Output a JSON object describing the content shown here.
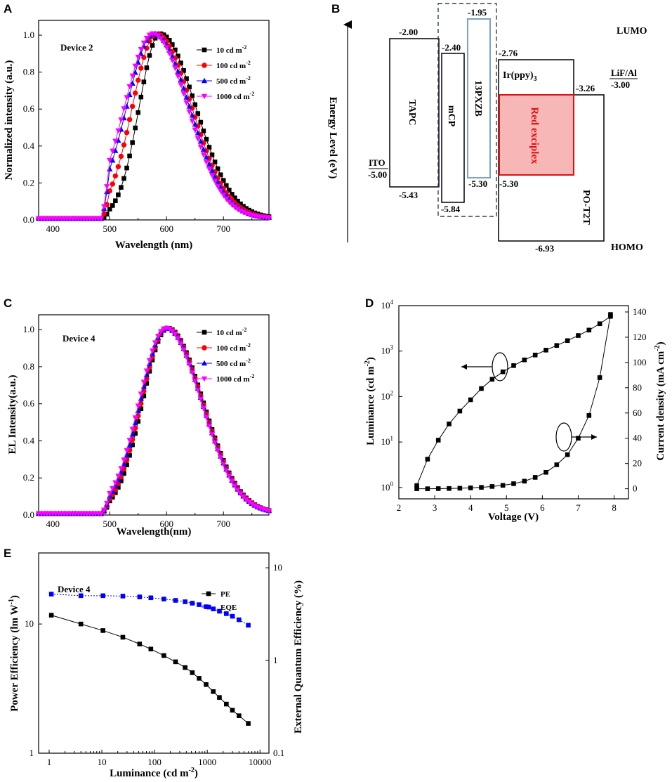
{
  "panels": {
    "A": {
      "letter": "A"
    },
    "B": {
      "letter": "B"
    },
    "C": {
      "letter": "C"
    },
    "D": {
      "letter": "D"
    },
    "E": {
      "letter": "E"
    }
  },
  "chart_data": [
    {
      "id": "A",
      "type": "line",
      "title": "Device 2",
      "xlabel": "Wavelength (nm)",
      "ylabel": "Normalized  intensity (a.u.)",
      "xlim": [
        375,
        780
      ],
      "ylim": [
        0,
        1.08
      ],
      "xticks": [
        "400",
        "500",
        "600",
        "700"
      ],
      "yticks": [
        "0.0",
        "0.2",
        "0.4",
        "0.6",
        "0.8",
        "1.0"
      ],
      "legend": [
        {
          "label": "10 cd m",
          "sup": "-2",
          "color": "#000000",
          "marker": "square",
          "peak": 588,
          "sl": 36,
          "sr": 63
        },
        {
          "label": "100 cd m",
          "sup": "-2",
          "color": "#ff0000",
          "marker": "circle",
          "peak": 582,
          "sl": 42,
          "sr": 62
        },
        {
          "label": "500 cd m",
          "sup": "-2",
          "color": "#0000ff",
          "marker": "triangle-up",
          "peak": 578,
          "sl": 48,
          "sr": 62
        },
        {
          "label": "1000 cd m",
          "sup": "-2",
          "color": "#ff00ff",
          "marker": "triangle-down",
          "peak": 576,
          "sl": 50,
          "sr": 61
        }
      ],
      "note": "Peak-normalized EL spectra; onset near 490 nm, peaks 576-590 nm"
    },
    {
      "id": "B",
      "type": "diagram",
      "ylabel": "Energy Level (eV)",
      "lumo_label": "LUMO",
      "homo_label": "HOMO",
      "layers": [
        {
          "name": "ITO",
          "value": "-5.00"
        },
        {
          "name": "TAPC",
          "lumo": "-2.00",
          "homo": "-5.43"
        },
        {
          "name": "mCP",
          "lumo": "-2.40",
          "homo": "-5.84"
        },
        {
          "name": "13PXZB",
          "lumo": "-1.95",
          "homo": "-5.30"
        },
        {
          "name": "Ir(ppy)",
          "sub": "3",
          "lumo": "-2.76"
        },
        {
          "name": "Red exciplex",
          "lumo": "-3.26",
          "homo": "-5.30"
        },
        {
          "name": "PO-T2T",
          "homo": "-6.93"
        },
        {
          "name": "LiF/Al",
          "value": "-3.00"
        }
      ]
    },
    {
      "id": "C",
      "type": "line",
      "title": "Device 4",
      "xlabel": "Wavelength(nm)",
      "ylabel": "EL Intensity(a.u.)",
      "xlim": [
        375,
        780
      ],
      "ylim": [
        0,
        1.08
      ],
      "xticks": [
        "400",
        "500",
        "600",
        "700"
      ],
      "yticks": [
        "0.0",
        "0.2",
        "0.4",
        "0.6",
        "0.8",
        "1.0"
      ],
      "legend": [
        {
          "label": "10 cd m",
          "sup": "-2",
          "color": "#000000",
          "marker": "square",
          "peak": 602,
          "sl": 44,
          "sr": 62
        },
        {
          "label": "100 cd m",
          "sup": "-2",
          "color": "#ff0000",
          "marker": "circle",
          "peak": 601,
          "sl": 45,
          "sr": 62
        },
        {
          "label": "500 cd m",
          "sup": "-2",
          "color": "#0000ff",
          "marker": "triangle-up",
          "peak": 600,
          "sl": 46,
          "sr": 62
        },
        {
          "label": "1000 cd m",
          "sup": "-2",
          "color": "#ff00ff",
          "marker": "triangle-down",
          "peak": 599,
          "sl": 47,
          "sr": 62
        }
      ],
      "note": "Peak-normalized EL spectra, peak near 600 nm"
    },
    {
      "id": "D",
      "type": "line",
      "xlabel": "Voltage (V)",
      "ylabel": "Luminance (cd m",
      "ylabel_sup": "-2",
      "ylabel_end": ")",
      "y2label": "Current density (mA cm",
      "y2label_sup": "-2",
      "y2label_end": ")",
      "xlim": [
        2,
        8.4
      ],
      "xticks": [
        "2",
        "3",
        "4",
        "5",
        "6",
        "7",
        "8"
      ],
      "ylim_log": [
        -0.25,
        4
      ],
      "yticks_log": [
        {
          "b": "10",
          "e": "0"
        },
        {
          "b": "10",
          "e": "1"
        },
        {
          "b": "10",
          "e": "2"
        },
        {
          "b": "10",
          "e": "3"
        },
        {
          "b": "10",
          "e": "4"
        }
      ],
      "y2lim": [
        -8,
        145
      ],
      "y2ticks": [
        "0",
        "20",
        "40",
        "60",
        "80",
        "100",
        "120",
        "140"
      ],
      "series": [
        {
          "name": "Luminance",
          "axis": "left-log",
          "x": [
            2.5,
            2.8,
            3.1,
            3.4,
            3.7,
            4.0,
            4.3,
            4.6,
            4.9,
            5.2,
            5.5,
            5.8,
            6.1,
            6.4,
            6.7,
            7.0,
            7.3,
            7.6,
            7.9
          ],
          "y": [
            1.1,
            4.2,
            11,
            25,
            48,
            85,
            150,
            240,
            350,
            480,
            640,
            820,
            1050,
            1330,
            1700,
            2200,
            2900,
            4000,
            5800
          ]
        },
        {
          "name": "Current density",
          "axis": "right",
          "x": [
            2.5,
            2.8,
            3.1,
            3.4,
            3.7,
            4.0,
            4.3,
            4.6,
            4.9,
            5.2,
            5.5,
            5.8,
            6.1,
            6.4,
            6.7,
            7.0,
            7.3,
            7.6,
            7.9
          ],
          "y": [
            0,
            0,
            0.1,
            0.2,
            0.4,
            0.7,
            1.1,
            1.8,
            2.7,
            4.0,
            6.0,
            9,
            13,
            19,
            27,
            40,
            58,
            88,
            138
          ]
        }
      ]
    },
    {
      "id": "E",
      "type": "line",
      "title": "Device 4",
      "xlabel": "Luminance (cd m",
      "xlabel_sup": "-2",
      "xlabel_end": ")",
      "ylabel": "Power Efficiency (lm W",
      "ylabel_sup": "-1",
      "ylabel_end": ")",
      "y2label": "External Quantum Efficiency (%)",
      "xlim_log": [
        -0.2,
        4.17
      ],
      "xticks": [
        "1",
        "10",
        "100",
        "1000",
        "10000"
      ],
      "ylim_log": [
        0,
        1.55
      ],
      "yticks": [
        "1",
        "10"
      ],
      "y2lim_log": [
        -1,
        1.16
      ],
      "y2ticks": [
        "0.1",
        "1",
        "10"
      ],
      "legend": [
        {
          "label": "PE",
          "color": "#000000"
        },
        {
          "label": "EQE",
          "color": "#0000ff"
        }
      ],
      "series": [
        {
          "name": "PE",
          "axis": "left-log",
          "x": [
            1.1,
            4,
            10.5,
            25,
            52,
            85,
            150,
            250,
            380,
            520,
            700,
            950,
            1300,
            1700,
            2300,
            3000,
            4000,
            6000
          ],
          "y": [
            11.7,
            10.0,
            8.9,
            7.9,
            7.0,
            6.4,
            5.7,
            5.1,
            4.6,
            4.2,
            3.8,
            3.4,
            3.0,
            2.7,
            2.4,
            2.15,
            1.95,
            1.7
          ]
        },
        {
          "name": "EQE",
          "axis": "right-log",
          "x": [
            1.1,
            4,
            10.5,
            25,
            52,
            85,
            150,
            250,
            380,
            520,
            700,
            950,
            1300,
            1700,
            2300,
            3000,
            4000,
            6000
          ],
          "y": [
            5.2,
            5.0,
            5.0,
            4.95,
            4.85,
            4.75,
            4.6,
            4.45,
            4.3,
            4.15,
            4.0,
            3.8,
            3.6,
            3.4,
            3.2,
            3.0,
            2.75,
            2.4
          ]
        }
      ]
    }
  ]
}
